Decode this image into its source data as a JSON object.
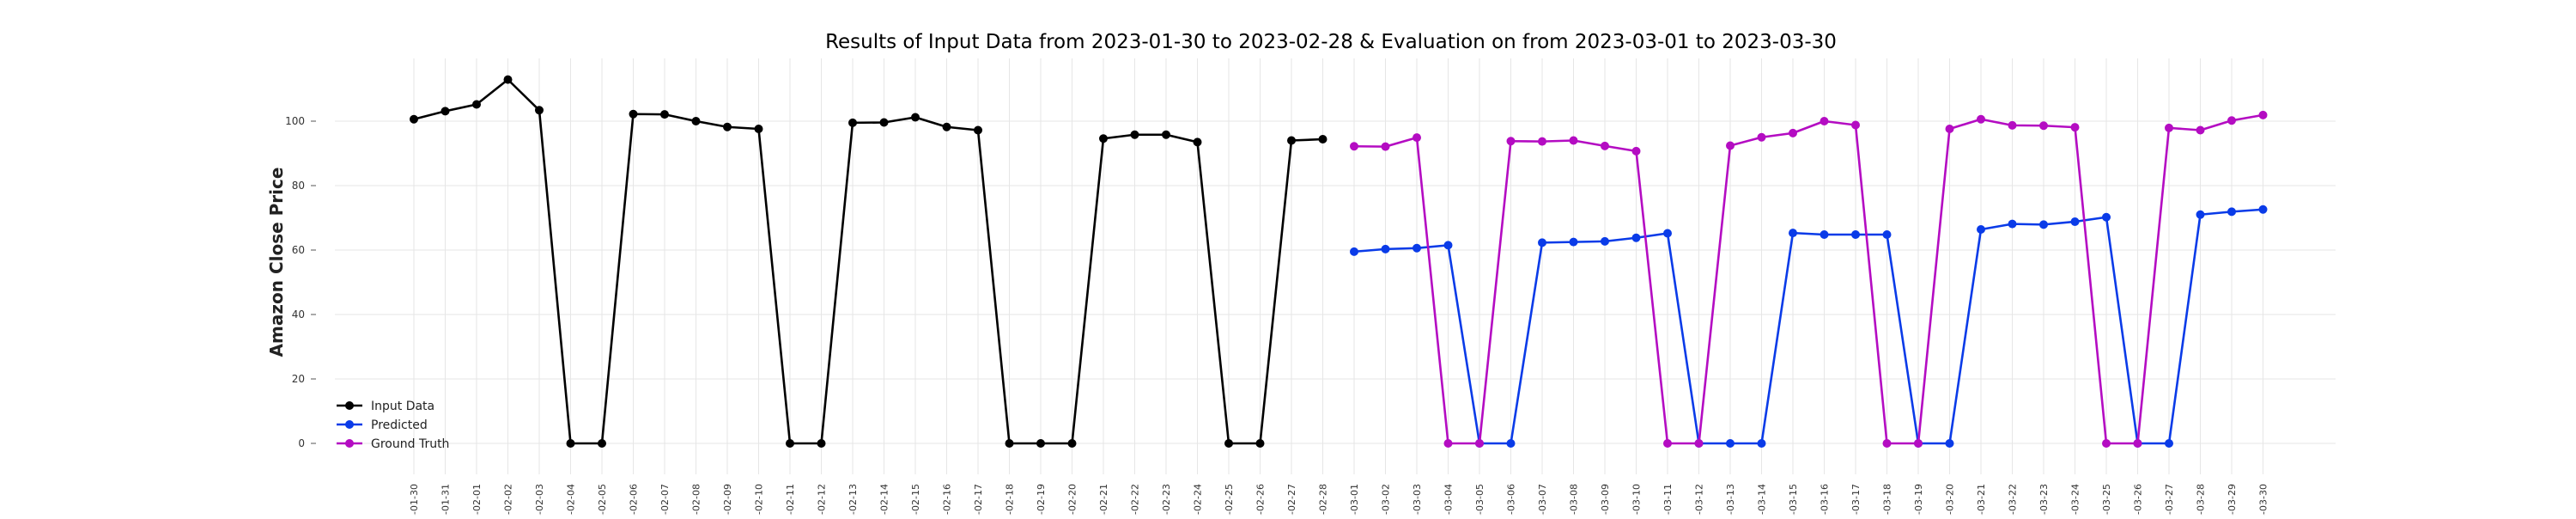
{
  "chart_data": {
    "type": "line",
    "title": "Results of Input Data from 2023-01-30 to 2023-02-28 & Evaluation on from 2023-03-01 to 2023-03-30",
    "xlabel": "",
    "ylabel": "Amazon Close Price",
    "ylim": [
      -5,
      118
    ],
    "y_ticks": [
      0,
      20,
      40,
      60,
      80,
      100
    ],
    "grid": true,
    "legend_position": "bottom-left",
    "categories": [
      "2023-01-30",
      "2023-01-31",
      "2023-02-01",
      "2023-02-02",
      "2023-02-03",
      "2023-02-04",
      "2023-02-05",
      "2023-02-06",
      "2023-02-07",
      "2023-02-08",
      "2023-02-09",
      "2023-02-10",
      "2023-02-11",
      "2023-02-12",
      "2023-02-13",
      "2023-02-14",
      "2023-02-15",
      "2023-02-16",
      "2023-02-17",
      "2023-02-18",
      "2023-02-19",
      "2023-02-20",
      "2023-02-21",
      "2023-02-22",
      "2023-02-23",
      "2023-02-24",
      "2023-02-25",
      "2023-02-26",
      "2023-02-27",
      "2023-02-28",
      "2023-03-01",
      "2023-03-02",
      "2023-03-03",
      "2023-03-04",
      "2023-03-05",
      "2023-03-06",
      "2023-03-07",
      "2023-03-08",
      "2023-03-09",
      "2023-03-10",
      "2023-03-11",
      "2023-03-12",
      "2023-03-13",
      "2023-03-14",
      "2023-03-15",
      "2023-03-16",
      "2023-03-17",
      "2023-03-18",
      "2023-03-19",
      "2023-03-20",
      "2023-03-21",
      "2023-03-22",
      "2023-03-23",
      "2023-03-24",
      "2023-03-25",
      "2023-03-26",
      "2023-03-27",
      "2023-03-28",
      "2023-03-29",
      "2023-03-30"
    ],
    "tick_labels": [
      "-23-01-30",
      "-23-01-31",
      "-23-02-01",
      "-23-02-02",
      "-23-02-03",
      "-23-02-04",
      "-23-02-05",
      "-23-02-06",
      "-23-02-07",
      "-23-02-08",
      "-23-02-09",
      "-23-02-10",
      "-23-02-11",
      "-23-02-12",
      "-23-02-13",
      "-23-02-14",
      "-23-02-15",
      "-23-02-16",
      "-23-02-17",
      "-23-02-18",
      "-23-02-19",
      "-23-02-20",
      "-23-02-21",
      "-23-02-22",
      "-23-02-23",
      "-23-02-24",
      "-23-02-25",
      "-23-02-26",
      "-23-02-27",
      "-23-02-28",
      "023-03-01",
      "023-03-02",
      "023-03-03",
      "023-03-04",
      "023-03-05",
      "023-03-06",
      "023-03-07",
      "023-03-08",
      "023-03-09",
      "023-03-10",
      "023-03-11",
      "023-03-12",
      "023-03-13",
      "023-03-14",
      "023-03-15",
      "023-03-16",
      "023-03-17",
      "023-03-18",
      "023-03-19",
      "023-03-20",
      "023-03-21",
      "023-03-22",
      "023-03-23",
      "023-03-24",
      "023-03-25",
      "023-03-26",
      "023-03-27",
      "023-03-28",
      "023-03-29",
      "023-03-30"
    ],
    "series": [
      {
        "name": "Input Data",
        "color": "#000000",
        "x": [
          "2023-01-30",
          "2023-01-31",
          "2023-02-01",
          "2023-02-02",
          "2023-02-03",
          "2023-02-04",
          "2023-02-05",
          "2023-02-06",
          "2023-02-07",
          "2023-02-08",
          "2023-02-09",
          "2023-02-10",
          "2023-02-11",
          "2023-02-12",
          "2023-02-13",
          "2023-02-14",
          "2023-02-15",
          "2023-02-16",
          "2023-02-17",
          "2023-02-18",
          "2023-02-19",
          "2023-02-20",
          "2023-02-21",
          "2023-02-22",
          "2023-02-23",
          "2023-02-24",
          "2023-02-25",
          "2023-02-26",
          "2023-02-27",
          "2023-02-28"
        ],
        "values": [
          100.6,
          103.1,
          105.2,
          112.9,
          103.4,
          0,
          0,
          102.2,
          102.1,
          100.0,
          98.2,
          97.6,
          0,
          0,
          99.5,
          99.6,
          101.2,
          98.2,
          97.2,
          0,
          0,
          0,
          94.6,
          95.8,
          95.8,
          93.5,
          0,
          0,
          94.0,
          94.4
        ]
      },
      {
        "name": "Predicted",
        "color": "#0a3be8",
        "x": [
          "2023-03-01",
          "2023-03-02",
          "2023-03-03",
          "2023-03-04",
          "2023-03-05",
          "2023-03-06",
          "2023-03-07",
          "2023-03-08",
          "2023-03-09",
          "2023-03-10",
          "2023-03-11",
          "2023-03-12",
          "2023-03-13",
          "2023-03-14",
          "2023-03-15",
          "2023-03-16",
          "2023-03-17",
          "2023-03-18",
          "2023-03-19",
          "2023-03-20",
          "2023-03-21",
          "2023-03-22",
          "2023-03-23",
          "2023-03-24",
          "2023-03-25",
          "2023-03-26",
          "2023-03-27",
          "2023-03-28",
          "2023-03-29",
          "2023-03-30"
        ],
        "values": [
          59.5,
          60.3,
          60.6,
          61.5,
          0,
          0,
          62.3,
          62.5,
          62.7,
          63.8,
          65.2,
          0,
          0,
          0,
          65.3,
          64.8,
          64.8,
          64.8,
          0,
          0,
          66.4,
          68.1,
          67.9,
          68.8,
          70.2,
          0,
          0,
          71.0,
          71.9,
          72.6
        ]
      },
      {
        "name": "Ground Truth",
        "color": "#b40cc2",
        "x": [
          "2023-03-01",
          "2023-03-02",
          "2023-03-03",
          "2023-03-04",
          "2023-03-05",
          "2023-03-06",
          "2023-03-07",
          "2023-03-08",
          "2023-03-09",
          "2023-03-10",
          "2023-03-11",
          "2023-03-12",
          "2023-03-13",
          "2023-03-14",
          "2023-03-15",
          "2023-03-16",
          "2023-03-17",
          "2023-03-18",
          "2023-03-19",
          "2023-03-20",
          "2023-03-21",
          "2023-03-22",
          "2023-03-23",
          "2023-03-24",
          "2023-03-25",
          "2023-03-26",
          "2023-03-27",
          "2023-03-28",
          "2023-03-29",
          "2023-03-30"
        ],
        "values": [
          92.2,
          92.1,
          94.9,
          0,
          0,
          93.8,
          93.7,
          94.0,
          92.3,
          90.7,
          0,
          0,
          92.4,
          95.0,
          96.3,
          100.0,
          98.8,
          0,
          0,
          97.6,
          100.6,
          98.7,
          98.6,
          98.1,
          0,
          0,
          97.9,
          97.2,
          100.2,
          101.9
        ]
      }
    ]
  }
}
